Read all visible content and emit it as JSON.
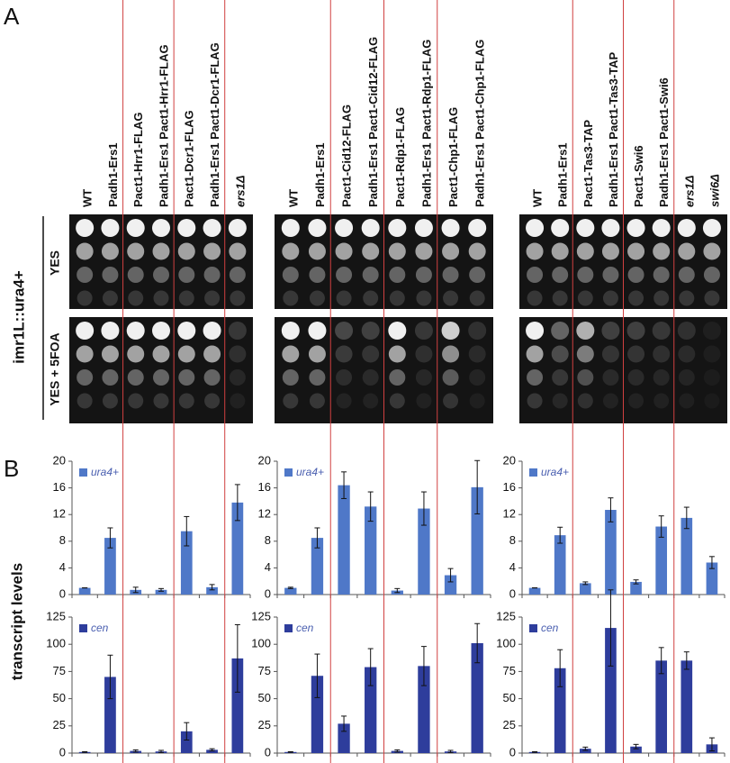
{
  "panel_labels": [
    "A",
    "B"
  ],
  "row_labels": {
    "strain": "imr1L::ura4+",
    "media": [
      "YES",
      "YES + 5FOA"
    ]
  },
  "groups": [
    {
      "strains": [
        "WT",
        "Padh1-Ers1",
        "Pact1-Hrr1-FLAG",
        "Padh1-Ers1 Pact1-Hrr1-FLAG",
        "Pact1-Dcr1-FLAG",
        "Padh1-Ers1 Pact1-Dcr1-FLAG",
        "ers1Δ"
      ]
    },
    {
      "strains": [
        "WT",
        "Padh1-Ers1",
        "Pact1-Cid12-FLAG",
        "Padh1-Ers1 Pact1-Cid12-FLAG",
        "Pact1-Rdp1-FLAG",
        "Padh1-Ers1 Pact1-Rdp1-FLAG",
        "Pact1-Chp1-FLAG",
        "Padh1-Ers1 Pact1-Chp1-FLAG"
      ]
    },
    {
      "strains": [
        "WT",
        "Padh1-Ers1",
        "Pact1-Tas3-TAP",
        "Padh1-Ers1 Pact1-Tas3-TAP",
        "Pact1-Swi6",
        "Padh1-Ers1 Pact1-Swi6",
        "ers1Δ",
        "swi6Δ"
      ]
    }
  ],
  "y_axis_label": "transcript levels",
  "chart_data": [
    {
      "type": "bar",
      "ylim": [
        0,
        20
      ],
      "yticks": [
        0,
        4,
        8,
        12,
        16,
        20
      ],
      "series": [
        {
          "name": "ura4+",
          "color": "#4f78c8",
          "values": [
            1,
            8.5,
            0.7,
            0.7,
            9.5,
            1.1,
            13.8
          ],
          "errors": [
            0,
            1.5,
            0.4,
            0.2,
            2.2,
            0.4,
            2.7
          ]
        }
      ]
    },
    {
      "type": "bar",
      "ylim": [
        0,
        20
      ],
      "yticks": [
        0,
        4,
        8,
        12,
        16,
        20
      ],
      "series": [
        {
          "name": "ura4+",
          "color": "#4f78c8",
          "values": [
            1,
            8.5,
            16.4,
            13.2,
            0.6,
            12.9,
            2.9,
            16.1
          ],
          "errors": [
            0.1,
            1.5,
            2,
            2.2,
            0.3,
            2.5,
            1,
            4
          ]
        }
      ]
    },
    {
      "type": "bar",
      "ylim": [
        0,
        20
      ],
      "yticks": [
        0,
        4,
        8,
        12,
        16,
        20
      ],
      "series": [
        {
          "name": "ura4+",
          "color": "#4f78c8",
          "values": [
            1,
            8.9,
            1.7,
            12.7,
            1.9,
            10.2,
            11.5,
            4.8
          ],
          "errors": [
            0,
            1.2,
            0.2,
            1.8,
            0.3,
            1.6,
            1.6,
            0.9
          ]
        }
      ]
    },
    {
      "type": "bar",
      "ylim": [
        0,
        125
      ],
      "yticks": [
        0,
        25,
        50,
        75,
        100,
        125
      ],
      "series": [
        {
          "name": "cen",
          "color": "#2e3d9c",
          "values": [
            1,
            70,
            2,
            1.5,
            20,
            3,
            87
          ],
          "errors": [
            0.3,
            20,
            1,
            1,
            8,
            1,
            31
          ]
        }
      ]
    },
    {
      "type": "bar",
      "ylim": [
        0,
        125
      ],
      "yticks": [
        0,
        25,
        50,
        75,
        100,
        125
      ],
      "series": [
        {
          "name": "cen",
          "color": "#2e3d9c",
          "values": [
            1,
            71,
            27,
            79,
            2,
            80,
            1.5,
            101
          ],
          "errors": [
            0.3,
            20,
            7,
            17,
            1,
            18,
            1,
            18
          ]
        }
      ]
    },
    {
      "type": "bar",
      "ylim": [
        0,
        125
      ],
      "yticks": [
        0,
        25,
        50,
        75,
        100,
        125
      ],
      "series": [
        {
          "name": "cen",
          "color": "#2e3d9c",
          "values": [
            1,
            78,
            4,
            115,
            6,
            85,
            85,
            8
          ],
          "errors": [
            0.3,
            17,
            1.5,
            35,
            2,
            12,
            8,
            6
          ]
        }
      ]
    }
  ]
}
